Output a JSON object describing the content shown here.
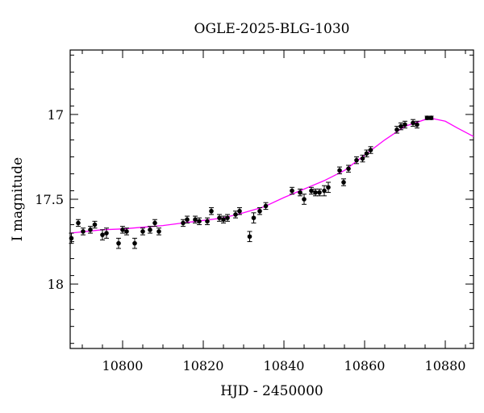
{
  "chart_data": {
    "type": "scatter",
    "title": "OGLE-2025-BLG-1030",
    "xlabel": "HJD - 2450000",
    "ylabel": "I magnitude",
    "xlim": [
      10787,
      10887
    ],
    "ylim": [
      18.38,
      16.62
    ],
    "y_inverted": true,
    "xticks": [
      10800,
      10820,
      10840,
      10860,
      10880
    ],
    "yticks": [
      17,
      17.5,
      18
    ],
    "ytick_labels": [
      "17",
      "17.5",
      "18"
    ],
    "grid": false,
    "series": [
      {
        "kind": "points",
        "color": "#000000",
        "points": [
          [
            10787.3,
            17.73,
            0.03
          ],
          [
            10789.0,
            17.64,
            0.02
          ],
          [
            10790.2,
            17.69,
            0.02
          ],
          [
            10792.0,
            17.68,
            0.02
          ],
          [
            10793.1,
            17.65,
            0.02
          ],
          [
            10795.0,
            17.71,
            0.03
          ],
          [
            10796.0,
            17.7,
            0.03
          ],
          [
            10799.0,
            17.76,
            0.03
          ],
          [
            10800.0,
            17.68,
            0.02
          ],
          [
            10801.0,
            17.69,
            0.02
          ],
          [
            10803.0,
            17.76,
            0.03
          ],
          [
            10805.0,
            17.69,
            0.02
          ],
          [
            10806.8,
            17.68,
            0.02
          ],
          [
            10808.0,
            17.64,
            0.02
          ],
          [
            10809.0,
            17.69,
            0.02
          ],
          [
            10815.0,
            17.64,
            0.02
          ],
          [
            10816.0,
            17.62,
            0.02
          ],
          [
            10818.0,
            17.62,
            0.02
          ],
          [
            10819.0,
            17.63,
            0.02
          ],
          [
            10821.0,
            17.63,
            0.02
          ],
          [
            10822.0,
            17.57,
            0.02
          ],
          [
            10824.0,
            17.61,
            0.02
          ],
          [
            10825.0,
            17.62,
            0.02
          ],
          [
            10826.0,
            17.61,
            0.02
          ],
          [
            10828.0,
            17.59,
            0.02
          ],
          [
            10829.0,
            17.57,
            0.02
          ],
          [
            10831.5,
            17.72,
            0.03
          ],
          [
            10832.5,
            17.61,
            0.03
          ],
          [
            10834.0,
            17.57,
            0.02
          ],
          [
            10835.5,
            17.54,
            0.02
          ],
          [
            10842.0,
            17.45,
            0.02
          ],
          [
            10844.0,
            17.46,
            0.02
          ],
          [
            10845.0,
            17.5,
            0.03
          ],
          [
            10846.8,
            17.45,
            0.02
          ],
          [
            10847.8,
            17.46,
            0.02
          ],
          [
            10848.8,
            17.46,
            0.02
          ],
          [
            10850.0,
            17.45,
            0.03
          ],
          [
            10851.0,
            17.43,
            0.03
          ],
          [
            10853.8,
            17.33,
            0.02
          ],
          [
            10854.8,
            17.4,
            0.02
          ],
          [
            10856.0,
            17.32,
            0.02
          ],
          [
            10858.0,
            17.27,
            0.02
          ],
          [
            10859.5,
            17.26,
            0.02
          ],
          [
            10860.5,
            17.23,
            0.02
          ],
          [
            10861.5,
            17.21,
            0.02
          ],
          [
            10868.0,
            17.09,
            0.02
          ],
          [
            10869.0,
            17.07,
            0.02
          ],
          [
            10870.0,
            17.06,
            0.02
          ],
          [
            10872.0,
            17.05,
            0.02
          ],
          [
            10873.0,
            17.06,
            0.02
          ],
          [
            10875.5,
            17.02,
            0.01
          ],
          [
            10876.5,
            17.02,
            0.01
          ]
        ]
      },
      {
        "kind": "model",
        "color": "#ff00ff",
        "points": [
          [
            10787,
            17.7
          ],
          [
            10795,
            17.68
          ],
          [
            10800,
            17.675
          ],
          [
            10805,
            17.665
          ],
          [
            10810,
            17.655
          ],
          [
            10815,
            17.64
          ],
          [
            10820,
            17.625
          ],
          [
            10825,
            17.61
          ],
          [
            10830,
            17.58
          ],
          [
            10835,
            17.545
          ],
          [
            10840,
            17.49
          ],
          [
            10845,
            17.44
          ],
          [
            10850,
            17.39
          ],
          [
            10855,
            17.33
          ],
          [
            10860,
            17.24
          ],
          [
            10865,
            17.15
          ],
          [
            10870,
            17.07
          ],
          [
            10875,
            17.03
          ],
          [
            10877,
            17.025
          ],
          [
            10880,
            17.04
          ],
          [
            10883,
            17.08
          ],
          [
            10887,
            17.13
          ]
        ]
      }
    ]
  }
}
